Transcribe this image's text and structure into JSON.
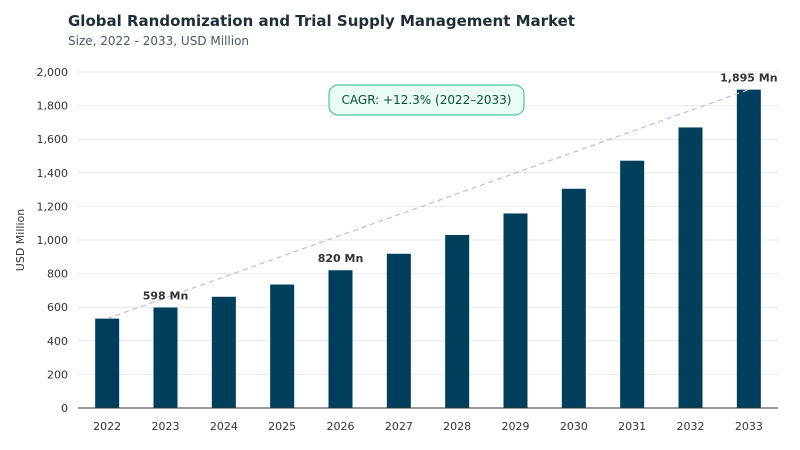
{
  "chart_data": {
    "type": "bar",
    "title": "Global Randomization and Trial Supply Management Market",
    "subtitle": "Size, 2022 - 2033, USD Million",
    "ylabel": "USD Million",
    "xlabel": "",
    "categories": [
      "2022",
      "2023",
      "2024",
      "2025",
      "2026",
      "2027",
      "2028",
      "2029",
      "2030",
      "2031",
      "2032",
      "2033"
    ],
    "values": [
      532,
      598,
      662,
      735,
      820,
      918,
      1030,
      1158,
      1305,
      1472,
      1670,
      1895
    ],
    "ylim": [
      0,
      2000
    ],
    "yticks": [
      0,
      200,
      400,
      600,
      800,
      1000,
      1200,
      1400,
      1600,
      1800,
      2000
    ],
    "ytick_labels": [
      "0",
      "200",
      "400",
      "600",
      "800",
      "1,000",
      "1,200",
      "1,400",
      "1,600",
      "1,800",
      "2,000"
    ],
    "bar_color": "#003f5c",
    "data_labels": [
      {
        "category": "2023",
        "text": "598 Mn"
      },
      {
        "category": "2026",
        "text": "820 Mn"
      },
      {
        "category": "2033",
        "text": "1,895 Mn"
      }
    ],
    "annotation": {
      "text": "CAGR: +12.3% (2022–2033)",
      "border_color": "#4cc9a0",
      "fill_color": "#eafaf4"
    },
    "trend_line": {
      "from": "2022",
      "to": "2033",
      "color": "#c9b8d4",
      "style": "dashed"
    },
    "grid": true
  }
}
